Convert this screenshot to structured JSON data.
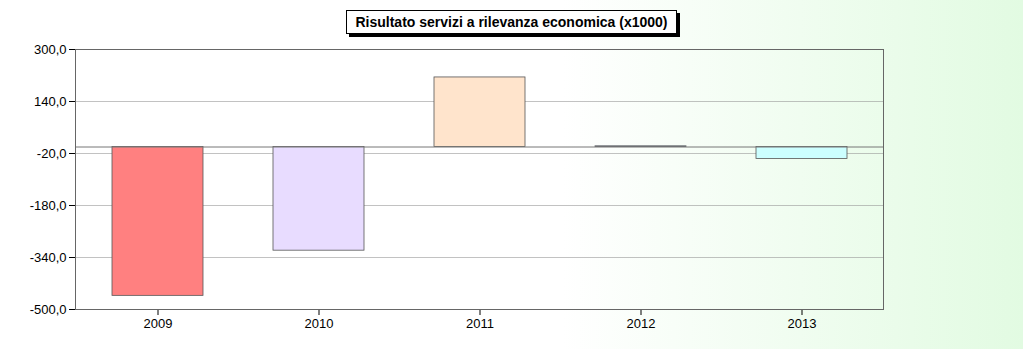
{
  "chart_data": {
    "type": "bar",
    "title": "Risultato servizi a rilevanza economica (x1000)",
    "categories": [
      "2009",
      "2010",
      "2011",
      "2012",
      "2013"
    ],
    "values": [
      -458,
      -319,
      214,
      2,
      -37
    ],
    "colors": [
      "#ff8080",
      "#e8dcff",
      "#ffe4cc",
      "#6e8fc4",
      "#ccffff"
    ],
    "ylim": [
      -500,
      300
    ],
    "yticks": [
      {
        "value": 300,
        "label": "300,0"
      },
      {
        "value": 140,
        "label": "140,0"
      },
      {
        "value": -20,
        "label": "-20,0"
      },
      {
        "value": -180,
        "label": "-180,0"
      },
      {
        "value": -340,
        "label": "-340,0"
      },
      {
        "value": -500,
        "label": "-500,0"
      }
    ],
    "grid": true
  }
}
